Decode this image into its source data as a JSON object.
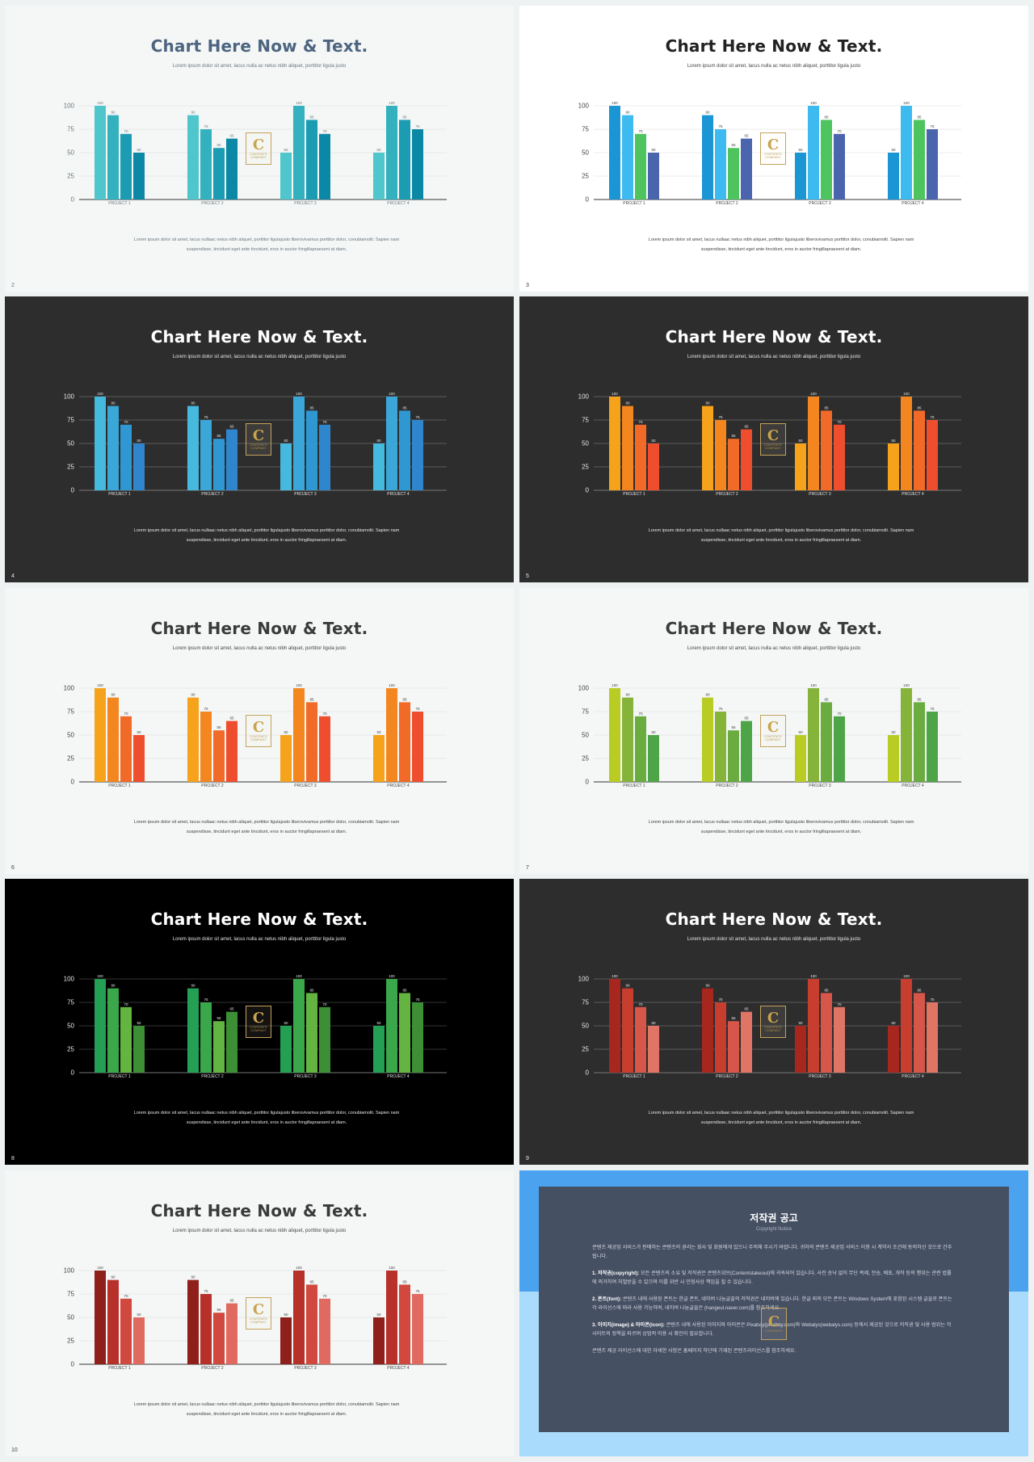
{
  "common": {
    "title": "Chart Here Now & Text.",
    "subtitle": "Lorem ipsum dolor sit amet, lacus nulla ac netus nibh aliquet, porttitor ligula justo",
    "body_line1": "Lorem ipsum dolor sit amet, lacus nullaac netus nibh aliquet, porttitor ligulajusto liberovivamus porttitor dolor, conubiamolit. Sapien nam",
    "body_line2": "suspendisse, tincidunt eget ante tincidunt, eros in auctor fringillapraesent at diam.",
    "logo_letter": "C",
    "logo_text": "CONTENTS",
    "logo_text2": "COMPANY"
  },
  "chart_data": {
    "type": "bar",
    "categories": [
      "PROJECT 1",
      "PROJECT 2",
      "PROJECT 3",
      "PROJECT 4"
    ],
    "series": [
      {
        "values": [
          100,
          90,
          50,
          50
        ]
      },
      {
        "values": [
          90,
          75,
          100,
          100
        ]
      },
      {
        "values": [
          70,
          55,
          85,
          85
        ]
      },
      {
        "values": [
          50,
          65,
          70,
          75
        ]
      }
    ],
    "ylim": [
      0,
      100
    ],
    "yticks": [
      0,
      25,
      50,
      75,
      100
    ],
    "grid": true
  },
  "slides": [
    {
      "num": "2",
      "bg": "#f4f7f6",
      "title_color": "#4d6480",
      "text_color": "#6a7580",
      "axis_color": "#333333",
      "grid_color": "#dddddd",
      "colors": [
        "#4fc5cc",
        "#33b1bf",
        "#1b9cb3",
        "#0b88a5"
      ]
    },
    {
      "num": "3",
      "bg": "#ffffff",
      "title_color": "#222222",
      "text_color": "#444444",
      "axis_color": "#333333",
      "grid_color": "#dddddd",
      "colors": [
        "#1a96d4",
        "#3dbaf0",
        "#4ec45e",
        "#4b64ae"
      ]
    },
    {
      "num": "4",
      "bg": "#2d2d2d",
      "title_color": "#ffffff",
      "text_color": "#e6e6e6",
      "axis_color": "#777777",
      "grid_color": "#8a8a8a",
      "colors": [
        "#45b9de",
        "#3aa7d8",
        "#2f98d2",
        "#2f86cc"
      ]
    },
    {
      "num": "5",
      "bg": "#2d2d2d",
      "title_color": "#ffffff",
      "text_color": "#e6e6e6",
      "axis_color": "#777777",
      "grid_color": "#8a8a8a",
      "colors": [
        "#f6a21b",
        "#f48620",
        "#f26a28",
        "#ee4e2e"
      ]
    },
    {
      "num": "6",
      "bg": "#f4f7f6",
      "title_color": "#3a3a3a",
      "text_color": "#444444",
      "axis_color": "#333333",
      "grid_color": "#dddddd",
      "colors": [
        "#f6a21b",
        "#f48620",
        "#f26a28",
        "#ee4e2e"
      ]
    },
    {
      "num": "7",
      "bg": "#f4f7f6",
      "title_color": "#3a3a3a",
      "text_color": "#444444",
      "axis_color": "#333333",
      "grid_color": "#dddddd",
      "colors": [
        "#b8cc24",
        "#86b43a",
        "#6aac40",
        "#4ea547"
      ]
    },
    {
      "num": "8",
      "bg": "#000000",
      "title_color": "#ffffff",
      "text_color": "#e6e6e6",
      "axis_color": "#777777",
      "grid_color": "#6a6a6a",
      "colors": [
        "#24a055",
        "#3aa74a",
        "#63b440",
        "#3c8f35"
      ]
    },
    {
      "num": "9",
      "bg": "#2d2d2d",
      "title_color": "#ffffff",
      "text_color": "#e6e6e6",
      "axis_color": "#777777",
      "grid_color": "#8a8a8a",
      "colors": [
        "#a7261e",
        "#c73d2e",
        "#d6564a",
        "#e07565"
      ]
    },
    {
      "num": "10",
      "bg": "#f4f7f6",
      "title_color": "#3a3a3a",
      "text_color": "#444444",
      "axis_color": "#333333",
      "grid_color": "#dddddd",
      "colors": [
        "#8e1f1a",
        "#b8302a",
        "#d0483e",
        "#e06a60"
      ]
    }
  ],
  "notice": {
    "title": "저작권 공고",
    "subtitle": "Copyright Notice",
    "intro": "콘텐츠 제공업 서비스가 판매하는 콘텐츠의 권리는 회사 및 회원에게 있으니 주의해 주시기 바랍니다. 귀하의 콘텐츠 제공업 서비스 이용 시 계약서 조건에 동의하신 것으로 간주됩니다.",
    "p1_label": "1. 저작권(copyright):",
    "p1_text": " 모든 콘텐츠의 소유 및 저작권은 콘텐츠위브(Contentstakeout)에 귀속되어 있습니다. 사전 승낙 없이 무단 복제, 전송, 배포, 개작 등의 행위는 관련 법률에 의거하여 처벌받을 수 있으며 이를 위반 시 민형사상 책임을 질 수 있습니다.",
    "p2_label": "2. 폰트(font):",
    "p2_text": " 콘텐츠 내에 사용된 폰트는 한글 폰트, 네이버 나눔글꼴의 저작권은 네이버에 있습니다. 한글 외의 모든 폰트는 Windows System에 포함된 시스템 글꼴로 폰트는 각 라이선스에 따라 사용 가능하며, 네이버 나눔글꼴은 (hangeul.naver.com)를 참조하세요.",
    "p3_label": "3. 이미지(image) & 아이콘(icon):",
    "p3_text": " 콘텐츠 내에 사용된 이미지와 아이콘은 Pixabay(pixabay.com)와 Webalys(webalys.com) 등에서 제공된 것으로 저작권 및 사용 범위는 각 사이트의 정책을 따르며 상업적 이용 시 확인이 필요합니다.",
    "outro": "콘텐츠 제공 라이선스에 대한 자세한 사항은 홈페이지 하단에 기재된 콘텐츠라이선스를 참조하세요.",
    "bg_top": "#4ba3f0",
    "bg_bottom": "#a9dbfc",
    "panel": "#465063"
  }
}
